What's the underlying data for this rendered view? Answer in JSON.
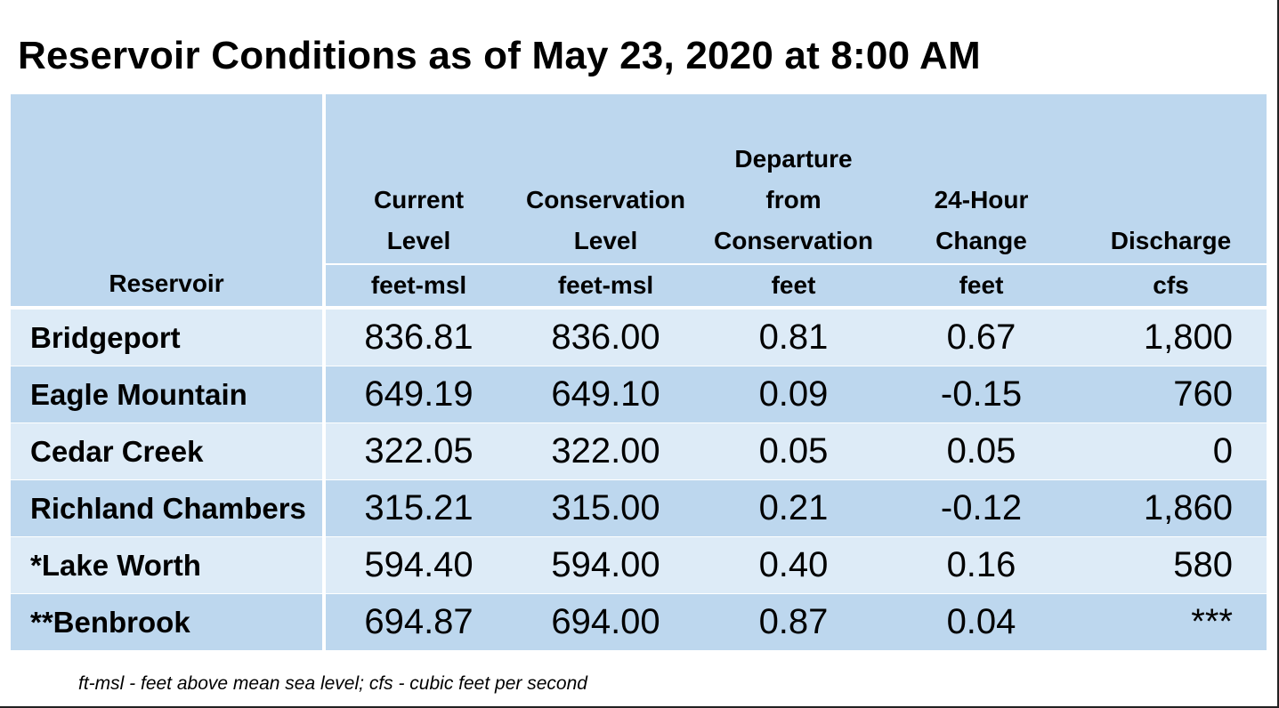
{
  "title": "Reservoir Conditions as of May 23, 2020 at 8:00 AM",
  "columns": [
    {
      "label": "Reservoir",
      "unit": ""
    },
    {
      "label": "Current Level",
      "unit": "feet-msl"
    },
    {
      "label": "Conservation Level",
      "unit": "feet-msl"
    },
    {
      "label": "Departure from Conservation",
      "unit": "feet"
    },
    {
      "label": "24-Hour Change",
      "unit": "feet"
    },
    {
      "label": "Discharge",
      "unit": "cfs"
    }
  ],
  "header": {
    "reservoir": "Reservoir",
    "current_l1": "Current",
    "current_l2": "Level",
    "current_unit": "feet-msl",
    "conservation_l1": "Conservation",
    "conservation_l2": "Level",
    "conservation_unit": "feet-msl",
    "departure_l1": "Departure",
    "departure_l2": "from",
    "departure_l3": "Conservation",
    "departure_unit": "feet",
    "change_l1": "24-Hour",
    "change_l2": "Change",
    "change_unit": "feet",
    "discharge_l1": "Discharge",
    "discharge_unit": "cfs"
  },
  "rows": [
    {
      "name": "Bridgeport",
      "current": "836.81",
      "conservation": "836.00",
      "departure": "0.81",
      "change": "0.67",
      "discharge": "1,800"
    },
    {
      "name": "Eagle Mountain",
      "current": "649.19",
      "conservation": "649.10",
      "departure": "0.09",
      "change": "-0.15",
      "discharge": "760"
    },
    {
      "name": "Cedar Creek",
      "current": "322.05",
      "conservation": "322.00",
      "departure": "0.05",
      "change": "0.05",
      "discharge": "0"
    },
    {
      "name": "Richland Chambers",
      "current": "315.21",
      "conservation": "315.00",
      "departure": "0.21",
      "change": "-0.12",
      "discharge": "1,860"
    },
    {
      "name": "*Lake Worth",
      "current": "594.40",
      "conservation": "594.00",
      "departure": "0.40",
      "change": "0.16",
      "discharge": "580"
    },
    {
      "name": "**Benbrook",
      "current": "694.87",
      "conservation": "694.00",
      "departure": "0.87",
      "change": "0.04",
      "discharge": "***"
    }
  ],
  "footnote": "ft-msl - feet above mean sea level; cfs - cubic feet per second",
  "colors": {
    "header_bg": "#bdd7ee",
    "row_light": "#ddebf7",
    "row_dark": "#bdd7ee",
    "separator": "#ffffff"
  }
}
